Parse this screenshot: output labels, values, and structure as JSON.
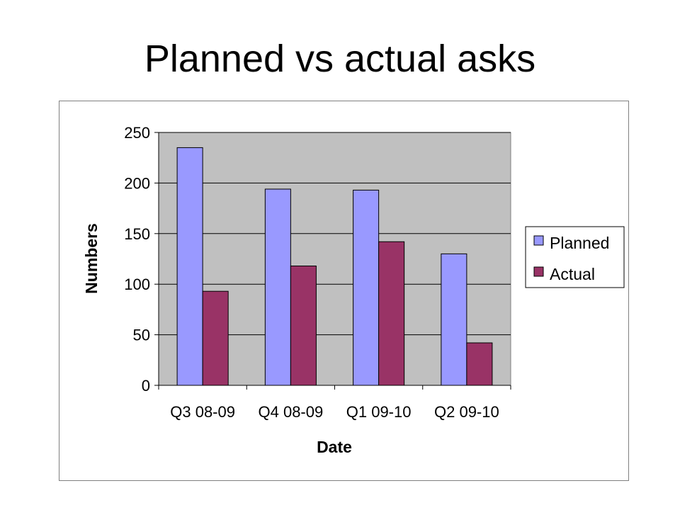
{
  "slide": {
    "title": "Planned vs actual asks"
  },
  "chart_data": {
    "type": "bar",
    "categories": [
      "Q3 08-09",
      "Q4 08-09",
      "Q1 09-10",
      "Q2 09-10"
    ],
    "series": [
      {
        "name": "Planned",
        "values": [
          235,
          194,
          193,
          130
        ],
        "color": "#9999FF"
      },
      {
        "name": "Actual",
        "values": [
          93,
          118,
          142,
          42
        ],
        "color": "#993366"
      }
    ],
    "xlabel": "Date",
    "ylabel": "Numbers",
    "ylim": [
      0,
      250
    ],
    "yticks": [
      0,
      50,
      100,
      150,
      200,
      250
    ],
    "grid": true,
    "plot_background": "#C0C0C0",
    "legend_position": "right"
  }
}
